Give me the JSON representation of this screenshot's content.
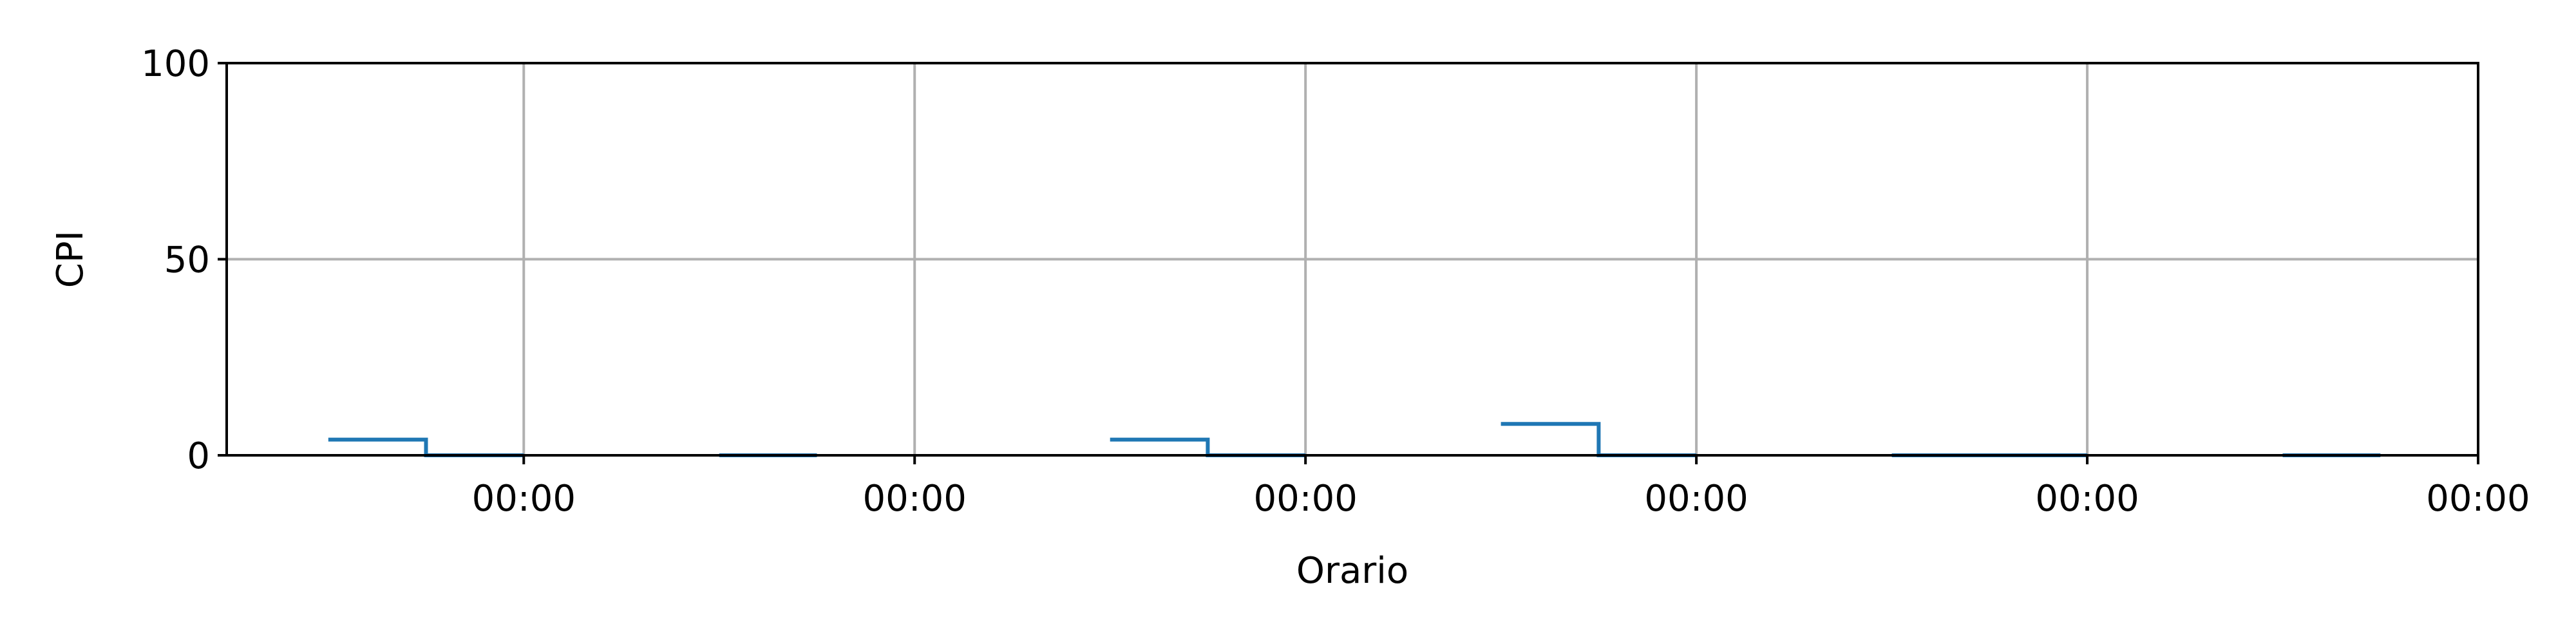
{
  "chart_data": {
    "type": "line",
    "step": true,
    "grid": true,
    "xlabel": "Orario",
    "ylabel": "CPI",
    "ylim": [
      0,
      100
    ],
    "yticks": [
      0,
      50,
      100
    ],
    "xlim": [
      -0.76,
      5.0
    ],
    "xticks": [
      0,
      1,
      2,
      3,
      4,
      5
    ],
    "xtick_labels": [
      "00:00",
      "00:00",
      "00:00",
      "00:00",
      "00:00",
      "00:00"
    ],
    "series": [
      {
        "color": "#1f77b4",
        "segments": [
          [
            [
              -0.5,
              4
            ],
            [
              -0.25,
              4
            ],
            [
              -0.25,
              0
            ],
            [
              0,
              0
            ]
          ],
          [
            [
              0.5,
              0
            ],
            [
              0.75,
              0
            ]
          ],
          [
            [
              1.5,
              4
            ],
            [
              1.75,
              4
            ],
            [
              1.75,
              0
            ],
            [
              2,
              0
            ]
          ],
          [
            [
              2.5,
              8
            ],
            [
              2.75,
              8
            ],
            [
              2.75,
              0
            ],
            [
              3,
              0
            ]
          ],
          [
            [
              3.5,
              0
            ],
            [
              4,
              0
            ]
          ],
          [
            [
              4.5,
              0
            ],
            [
              4.75,
              0
            ]
          ]
        ]
      }
    ]
  }
}
